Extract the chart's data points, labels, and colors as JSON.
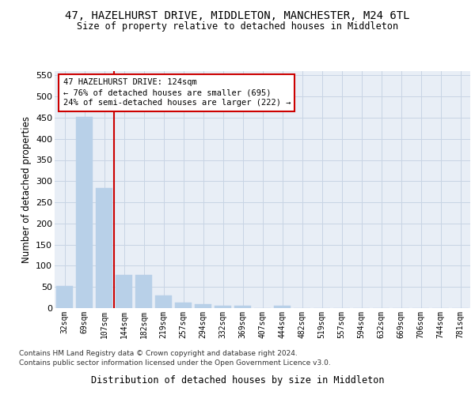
{
  "title": "47, HAZELHURST DRIVE, MIDDLETON, MANCHESTER, M24 6TL",
  "subtitle": "Size of property relative to detached houses in Middleton",
  "xlabel": "Distribution of detached houses by size in Middleton",
  "ylabel": "Number of detached properties",
  "bar_labels": [
    "32sqm",
    "69sqm",
    "107sqm",
    "144sqm",
    "182sqm",
    "219sqm",
    "257sqm",
    "294sqm",
    "332sqm",
    "369sqm",
    "407sqm",
    "444sqm",
    "482sqm",
    "519sqm",
    "557sqm",
    "594sqm",
    "632sqm",
    "669sqm",
    "706sqm",
    "744sqm",
    "781sqm"
  ],
  "bar_values": [
    53,
    451,
    283,
    78,
    78,
    30,
    14,
    10,
    5,
    5,
    0,
    6,
    0,
    0,
    0,
    0,
    0,
    0,
    0,
    0,
    0
  ],
  "bar_color": "#b8d0e8",
  "bar_edge_color": "#b8d0e8",
  "grid_color": "#c8d4e4",
  "bg_color": "#e8eef6",
  "vline_color": "#cc0000",
  "annotation_text": "47 HAZELHURST DRIVE: 124sqm\n← 76% of detached houses are smaller (695)\n24% of semi-detached houses are larger (222) →",
  "annotation_box_color": "#ffffff",
  "annotation_border_color": "#cc0000",
  "ylim": [
    0,
    560
  ],
  "yticks": [
    0,
    50,
    100,
    150,
    200,
    250,
    300,
    350,
    400,
    450,
    500,
    550
  ],
  "footer_line1": "Contains HM Land Registry data © Crown copyright and database right 2024.",
  "footer_line2": "Contains public sector information licensed under the Open Government Licence v3.0."
}
